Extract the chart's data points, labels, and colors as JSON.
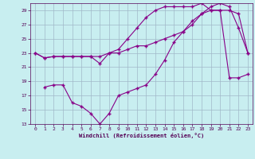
{
  "xlabel": "Windchill (Refroidissement éolien,°C)",
  "background_color": "#c8eef0",
  "grid_color": "#a0b8c8",
  "line_color": "#880088",
  "xlim": [
    -0.5,
    23.5
  ],
  "ylim": [
    13,
    30
  ],
  "xticks": [
    0,
    1,
    2,
    3,
    4,
    5,
    6,
    7,
    8,
    9,
    10,
    11,
    12,
    13,
    14,
    15,
    16,
    17,
    18,
    19,
    20,
    21,
    22,
    23
  ],
  "yticks": [
    13,
    15,
    17,
    19,
    21,
    23,
    25,
    27,
    29
  ],
  "s1x": [
    0,
    1,
    2,
    3,
    4,
    5,
    6,
    7,
    8,
    9,
    10,
    11,
    12,
    13,
    14,
    15,
    16,
    17,
    18,
    19,
    20,
    21,
    22,
    23
  ],
  "s1y": [
    23.0,
    22.3,
    22.5,
    22.5,
    22.5,
    22.5,
    22.5,
    22.5,
    23.0,
    23.0,
    23.5,
    24.0,
    24.0,
    24.5,
    25.0,
    25.5,
    26.0,
    27.0,
    28.5,
    29.0,
    29.0,
    29.0,
    28.5,
    23.0
  ],
  "s2x": [
    1,
    2,
    3,
    4,
    5,
    6,
    7,
    8,
    9,
    10,
    11,
    12,
    13,
    14,
    15,
    16,
    17,
    18,
    19,
    20,
    21,
    22,
    23
  ],
  "s2y": [
    18.2,
    18.5,
    18.5,
    16.0,
    15.5,
    14.5,
    13.0,
    14.5,
    17.0,
    17.5,
    18.0,
    18.5,
    20.0,
    22.0,
    24.5,
    26.0,
    27.5,
    28.5,
    29.5,
    30.0,
    29.5,
    26.5,
    23.0
  ],
  "s3x": [
    0,
    1,
    2,
    3,
    4,
    5,
    6,
    7,
    8,
    9,
    10,
    11,
    12,
    13,
    14,
    15,
    16,
    17,
    18,
    19,
    20,
    21,
    22,
    23
  ],
  "s3y": [
    23.0,
    22.3,
    22.5,
    22.5,
    22.5,
    22.5,
    22.5,
    21.5,
    23.0,
    23.5,
    25.0,
    26.5,
    28.0,
    29.0,
    29.5,
    29.5,
    29.5,
    29.5,
    30.0,
    29.0,
    29.0,
    19.5,
    19.5,
    20.0
  ]
}
